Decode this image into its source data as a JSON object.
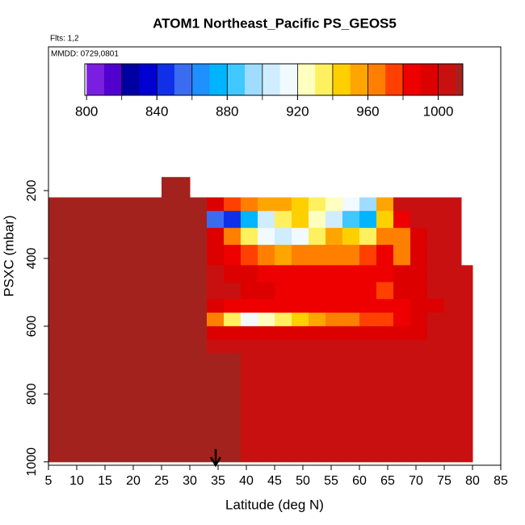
{
  "chart_data": {
    "type": "heatmap",
    "title": "ATOM1 Northeast_Pacific PS_GEOS5",
    "subtitle": "Flts: 1,2",
    "annotation": "MMDD: 0729,0801",
    "x_label": "Latitude (deg N)",
    "y_label": "PSXC (mbar)",
    "xlim": [
      5,
      85
    ],
    "ylim": [
      1010,
      -224
    ],
    "xticks": [
      5,
      10,
      15,
      20,
      25,
      30,
      35,
      40,
      45,
      50,
      55,
      60,
      65,
      70,
      75,
      80,
      85
    ],
    "yticks": [
      200,
      400,
      600,
      800,
      1000
    ],
    "x_edges": [
      5,
      10,
      15,
      20,
      25,
      30,
      33,
      36,
      39,
      42,
      45,
      48,
      51,
      54,
      57,
      60,
      63,
      66,
      69,
      72,
      75,
      78,
      80
    ],
    "y_edges": [
      160,
      220,
      260,
      310,
      360,
      420,
      470,
      520,
      560,
      600,
      640,
      680,
      1000
    ],
    "values": [
      [
        null,
        null,
        null,
        null,
        1012,
        null,
        null,
        null,
        null,
        null,
        null,
        null,
        null,
        null,
        null,
        null,
        null,
        null,
        null,
        null,
        null,
        null
      ],
      [
        1012,
        1012,
        1012,
        1012,
        1012,
        1012,
        990,
        975,
        965,
        955,
        950,
        945,
        935,
        925,
        910,
        895,
        950,
        1000,
        1000,
        1003,
        1005,
        null
      ],
      [
        1012,
        1012,
        1012,
        1012,
        1012,
        1012,
        850,
        845,
        870,
        900,
        930,
        940,
        920,
        900,
        880,
        870,
        940,
        985,
        1000,
        1005,
        1005,
        null
      ],
      [
        1012,
        1012,
        1012,
        1012,
        1012,
        1012,
        990,
        960,
        930,
        910,
        905,
        910,
        930,
        950,
        940,
        930,
        960,
        960,
        990,
        1000,
        1005,
        null
      ],
      [
        1012,
        1012,
        1012,
        1012,
        1012,
        1012,
        995,
        985,
        970,
        960,
        955,
        960,
        965,
        965,
        960,
        970,
        985,
        960,
        995,
        1000,
        1003,
        null
      ],
      [
        1012,
        1012,
        1012,
        1012,
        1012,
        1012,
        1000,
        995,
        990,
        985,
        985,
        985,
        985,
        985,
        985,
        985,
        985,
        990,
        995,
        1000,
        1003,
        1004
      ],
      [
        1012,
        1012,
        1012,
        1012,
        1012,
        1012,
        1002,
        1000,
        995,
        990,
        988,
        988,
        988,
        988,
        988,
        988,
        970,
        990,
        995,
        1000,
        1003,
        1004
      ],
      [
        1012,
        1012,
        1012,
        1012,
        1012,
        1012,
        995,
        985,
        985,
        985,
        985,
        985,
        985,
        985,
        985,
        985,
        980,
        985,
        990,
        995,
        1000,
        1002
      ],
      [
        1012,
        1012,
        1012,
        1012,
        1012,
        1012,
        960,
        930,
        915,
        925,
        935,
        945,
        950,
        960,
        965,
        970,
        975,
        985,
        995,
        1000,
        1003,
        1003
      ],
      [
        1012,
        1012,
        1012,
        1012,
        1012,
        1012,
        995,
        995,
        995,
        995,
        995,
        995,
        995,
        995,
        995,
        995,
        995,
        995,
        998,
        1000,
        1003,
        1003
      ],
      [
        1012,
        1012,
        1012,
        1012,
        1012,
        1012,
        1005,
        1005,
        1004,
        1004,
        1004,
        1004,
        1004,
        1003,
        1003,
        1003,
        1003,
        1003,
        1003,
        1003,
        1003,
        1003
      ],
      [
        1012,
        1012,
        1012,
        1012,
        1012,
        1011,
        1010,
        1010,
        1009,
        1009,
        1008,
        1008,
        1008,
        1007,
        1007,
        1006,
        1006,
        1005,
        1005,
        1004,
        1003,
        1003
      ]
    ],
    "colorbar": {
      "lim": [
        799,
        1014
      ],
      "ticks": [
        800,
        840,
        880,
        920,
        960,
        1000
      ],
      "breaks": [
        800,
        810,
        820,
        830,
        840,
        850,
        860,
        870,
        880,
        890,
        900,
        910,
        920,
        930,
        940,
        950,
        960,
        970,
        980,
        990,
        1000,
        1010,
        1020
      ],
      "colors": [
        "#7a1fe0",
        "#5200d0",
        "#0000a0",
        "#0000d0",
        "#1030e8",
        "#3a6cf0",
        "#1e90ff",
        "#00b4ff",
        "#40c8ff",
        "#a0dcff",
        "#d0ecff",
        "#f0faff",
        "#ffffc0",
        "#fff060",
        "#ffd000",
        "#ffa500",
        "#ff7f00",
        "#ff4000",
        "#ee0000",
        "#dd0000",
        "#c81010",
        "#a3221e"
      ]
    }
  }
}
